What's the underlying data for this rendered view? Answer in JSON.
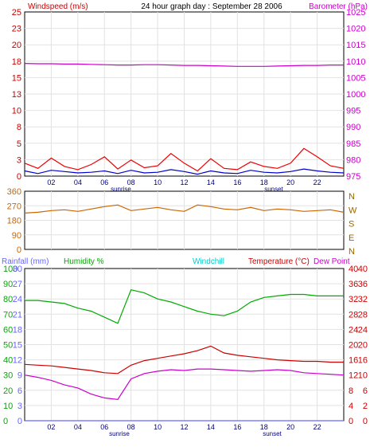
{
  "chart_data": [
    {
      "type": "line",
      "title": "24 hour graph day : September 28 2006",
      "left_axis_label": "Windspeed (m/s)",
      "right_axis_label": "Barometer (hPa)",
      "left_ticks": [
        "0",
        "3",
        "5",
        "8",
        "10",
        "13",
        "15",
        "18",
        "20",
        "23",
        "25"
      ],
      "left_ylim": [
        0,
        25.5
      ],
      "right_ticks": [
        "975",
        "980",
        "985",
        "990",
        "995",
        "1000",
        "1005",
        "1010",
        "1015",
        "1020",
        "1025"
      ],
      "right_ylim": [
        974.5,
        1025.5
      ],
      "x_ticks": [
        "02",
        "04",
        "06",
        "08",
        "10",
        "12",
        "14",
        "16",
        "18",
        "20",
        "22"
      ],
      "xlim": [
        0,
        24
      ],
      "annotations": [
        "sunrise",
        "sunset"
      ],
      "colors": {
        "left_axis": "#cc0000",
        "right_axis": "#cc00cc",
        "wind_gust": "#ee0000",
        "wind_avg": "#0000cc",
        "barometer": "#cc00cc"
      },
      "series": [
        {
          "values": [
            1009.5,
            1009.4,
            1009.4,
            1009.3,
            1009.3,
            1009.2,
            1009.1,
            1009.0,
            1009.0,
            1009.1,
            1009.1,
            1009.0,
            1008.9,
            1008.9,
            1008.8,
            1008.7,
            1008.6,
            1008.6,
            1008.6,
            1008.7,
            1008.8,
            1008.9,
            1008.9,
            1009.0,
            1009.0
          ]
        },
        {
          "values": [
            0.8,
            0.4,
            0.9,
            0.7,
            0.5,
            0.6,
            0.8,
            0.4,
            0.9,
            0.5,
            0.6,
            1.0,
            0.7,
            0.3,
            0.8,
            0.5,
            0.4,
            0.9,
            0.6,
            0.5,
            0.7,
            1.1,
            0.8,
            0.6,
            0.5
          ]
        },
        {
          "values": [
            2.0,
            1.2,
            2.8,
            1.5,
            1.0,
            1.8,
            3.0,
            1.1,
            2.5,
            1.3,
            1.6,
            3.5,
            2.0,
            0.8,
            2.7,
            1.2,
            1.0,
            2.2,
            1.5,
            1.2,
            2.0,
            4.3,
            3.0,
            1.6,
            1.2
          ]
        }
      ]
    },
    {
      "type": "line",
      "left_ticks": [
        "0",
        "90",
        "180",
        "270",
        "360"
      ],
      "left_ylim": [
        0,
        360
      ],
      "right_ticks": [
        "N",
        "W",
        "S",
        "E",
        "N"
      ],
      "colors": {
        "direction": "#cc6600",
        "right_axis": "#996600"
      },
      "series": [
        {
          "values": [
            225,
            230,
            240,
            245,
            235,
            250,
            265,
            275,
            240,
            250,
            260,
            245,
            235,
            275,
            265,
            250,
            245,
            260,
            240,
            250,
            245,
            235,
            240,
            245,
            230
          ]
        }
      ]
    },
    {
      "type": "line",
      "rainfall_label": "Rainfall (mm)",
      "humidity_label": "Humidity %",
      "windchill_label": "Windchill",
      "temperature_label": "Temperature (°C)",
      "dew_point_label": "Dew Point",
      "rain_ticks": [
        "0",
        "3",
        "6",
        "9",
        "12",
        "15",
        "18",
        "21",
        "24",
        "27",
        "30"
      ],
      "humidity_ticks": [
        "0",
        "10",
        "20",
        "30",
        "40",
        "50",
        "60",
        "70",
        "80",
        "90",
        "100"
      ],
      "temp_ticks": [
        "0",
        "4",
        "8",
        "12",
        "16",
        "20",
        "24",
        "28",
        "32",
        "36",
        "40"
      ],
      "temp_ticks_right": [
        "0",
        "2",
        "6",
        "10",
        "16",
        "20",
        "24",
        "28",
        "32",
        "36",
        "40"
      ],
      "humidity_ylim": [
        0,
        100
      ],
      "temp_ylim": [
        0,
        40
      ],
      "rain_ylim": [
        0,
        30
      ],
      "annotations": [
        "sunrise",
        "sunset"
      ],
      "colors": {
        "rain": "#6666ff",
        "humidity": "#00aa00",
        "windchill": "#00cccc",
        "temperature": "#cc0000",
        "dew_point": "#cc00cc"
      },
      "series": [
        {
          "values": [
            79,
            79,
            78,
            77,
            74,
            72,
            68,
            64,
            86,
            84,
            80,
            78,
            75,
            72,
            70,
            69,
            72,
            78,
            81,
            82,
            83,
            83,
            82,
            82,
            82
          ]
        },
        {
          "values": [
            14.8,
            14.6,
            14.4,
            14.0,
            13.6,
            13.2,
            12.6,
            12.4,
            14.6,
            15.8,
            16.4,
            17.0,
            17.6,
            18.4,
            19.6,
            17.8,
            17.2,
            16.8,
            16.4,
            16.0,
            15.8,
            15.6,
            15.6,
            15.4,
            15.4
          ]
        },
        {
          "values": [
            12.0,
            11.4,
            10.6,
            9.4,
            8.6,
            7.0,
            6.0,
            5.6,
            11.0,
            12.4,
            13.0,
            13.4,
            13.2,
            13.6,
            13.6,
            13.4,
            13.2,
            13.0,
            13.2,
            13.4,
            13.2,
            12.6,
            12.4,
            12.2,
            12.0
          ]
        },
        {
          "values": [
            0,
            0,
            0,
            0,
            0,
            0,
            0,
            0,
            0,
            0,
            0,
            0,
            0,
            0,
            0,
            0,
            0,
            0,
            0,
            0,
            0,
            0,
            0,
            0,
            0
          ]
        }
      ]
    }
  ]
}
